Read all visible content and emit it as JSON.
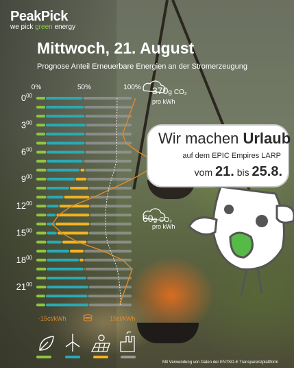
{
  "logo": {
    "name": "PeakPick",
    "tagline_pre": "we pick ",
    "tagline_green": "green",
    "tagline_post": " energy"
  },
  "title": "Mittwoch, 21. August",
  "subtitle": "Prognose Anteil Erneuerbare Energien an der Stromerzeugung",
  "co2": {
    "max": {
      "value": "370",
      "unit": "g",
      "label": "CO₂",
      "sub": "pro kWh"
    },
    "min": {
      "value": "60",
      "unit": "g",
      "label": "CO₂",
      "sub": "pro kWh"
    }
  },
  "price_axis": {
    "left": "-15ct/kWh",
    "right": "15ct/kWh"
  },
  "bubble": {
    "line1_pre": "Wir machen ",
    "line1_bold": "Urlaub",
    "line2": "auf dem EPIC Empires LARP",
    "line3_a": "vom ",
    "line3_b": "21.",
    "line3_c": " bis ",
    "line3_d": "25.8."
  },
  "legend_icons": [
    "leaf-icon",
    "wind-turbine-icon",
    "solar-panel-icon",
    "power-plant-icon"
  ],
  "credit": "Mit Verwendung von Daten der ENTSO-E Transparenzplattform",
  "colors": {
    "bio": "#8ec63f",
    "wind": "#29aab5",
    "solar": "#f0b323",
    "fossil": "#9a9a9a",
    "price": "#e08a2c",
    "co2": "#ffffff"
  },
  "chart_data": {
    "type": "bar",
    "orientation": "horizontal-stacked",
    "xlim": [
      0,
      100
    ],
    "x_ticks": [
      "0%",
      "50%",
      "100%"
    ],
    "hour_labels": [
      {
        "h": "0",
        "s": "00"
      },
      {
        "h": "3",
        "s": "00"
      },
      {
        "h": "6",
        "s": "00"
      },
      {
        "h": "9",
        "s": "00"
      },
      {
        "h": "12",
        "s": "00"
      },
      {
        "h": "15",
        "s": "00"
      },
      {
        "h": "18",
        "s": "00"
      },
      {
        "h": "21",
        "s": "00"
      }
    ],
    "categories": [
      "0",
      "1",
      "2",
      "3",
      "4",
      "5",
      "6",
      "7",
      "8",
      "9",
      "10",
      "11",
      "12",
      "13",
      "14",
      "15",
      "16",
      "17",
      "18",
      "19",
      "20",
      "21",
      "22",
      "23"
    ],
    "series": [
      {
        "values": [
          10,
          10,
          10,
          10,
          10,
          11,
          11,
          11,
          11,
          11,
          11,
          11,
          11,
          11,
          11,
          11,
          11,
          11,
          11,
          11,
          11,
          11,
          10,
          10
        ]
      },
      {
        "values": [
          39,
          40,
          41,
          42,
          41,
          40,
          40,
          38,
          35,
          30,
          24,
          18,
          13,
          10,
          9,
          11,
          16,
          24,
          34,
          39,
          42,
          44,
          44,
          45
        ]
      },
      {
        "values": [
          0,
          0,
          0,
          0,
          0,
          0,
          0,
          1,
          5,
          12,
          20,
          27,
          32,
          35,
          36,
          33,
          26,
          15,
          5,
          1,
          0,
          0,
          0,
          0
        ]
      },
      {
        "values": [
          51,
          50,
          49,
          48,
          49,
          49,
          49,
          50,
          49,
          47,
          45,
          44,
          44,
          44,
          44,
          45,
          47,
          50,
          50,
          49,
          47,
          45,
          46,
          45
        ]
      }
    ],
    "price_line": [
      16,
      15,
      14,
      13,
      12,
      13,
      17,
      22,
      20,
      15,
      9,
      3,
      -4,
      -8,
      -10,
      -7,
      -2,
      6,
      12,
      15,
      14,
      13,
      12,
      11
    ],
    "co2_line": [
      295,
      295,
      292,
      285,
      280,
      284,
      287,
      280,
      240,
      180,
      130,
      95,
      75,
      62,
      60,
      68,
      100,
      170,
      240,
      300,
      330,
      350,
      365,
      370
    ]
  }
}
